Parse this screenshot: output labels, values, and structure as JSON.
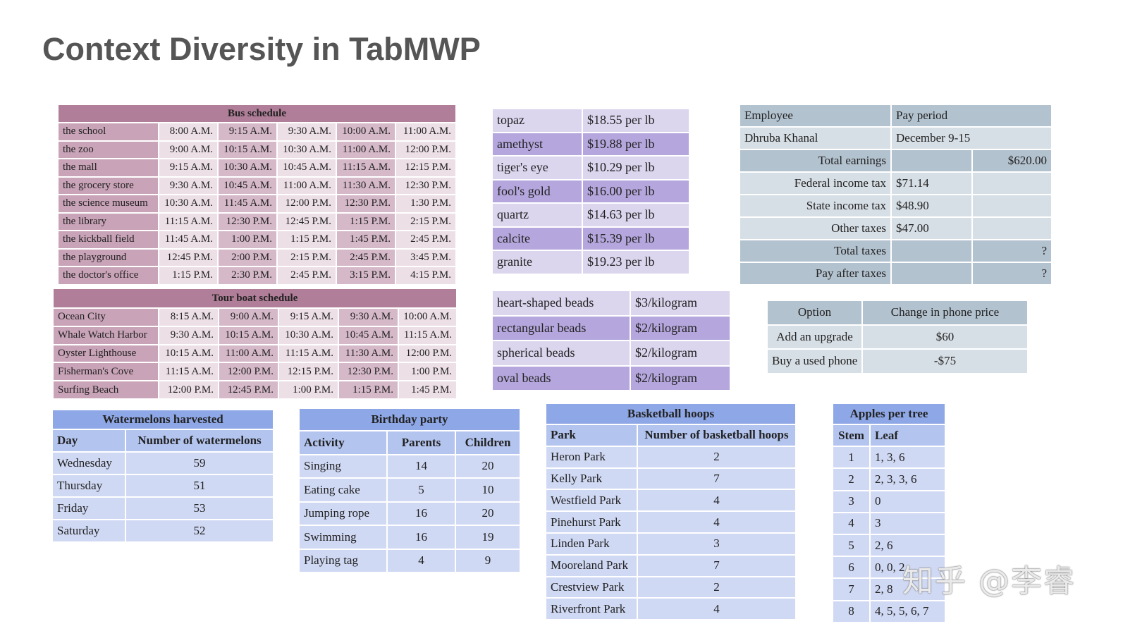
{
  "title": "Context Diversity in TabMWP",
  "watermark": "知乎 @李睿",
  "tables": {
    "bus": {
      "title": "Bus schedule",
      "rows": [
        [
          "the school",
          "8:00 A.M.",
          "9:15 A.M.",
          "9:30 A.M.",
          "10:00 A.M.",
          "11:00 A.M."
        ],
        [
          "the zoo",
          "9:00 A.M.",
          "10:15 A.M.",
          "10:30 A.M.",
          "11:00 A.M.",
          "12:00 P.M."
        ],
        [
          "the mall",
          "9:15 A.M.",
          "10:30 A.M.",
          "10:45 A.M.",
          "11:15 A.M.",
          "12:15 P.M."
        ],
        [
          "the grocery store",
          "9:30 A.M.",
          "10:45 A.M.",
          "11:00 A.M.",
          "11:30 A.M.",
          "12:30 P.M."
        ],
        [
          "the science museum",
          "10:30 A.M.",
          "11:45 A.M.",
          "12:00 P.M.",
          "12:30 P.M.",
          "1:30 P.M."
        ],
        [
          "the library",
          "11:15 A.M.",
          "12:30 P.M.",
          "12:45 P.M.",
          "1:15 P.M.",
          "2:15 P.M."
        ],
        [
          "the kickball field",
          "11:45 A.M.",
          "1:00 P.M.",
          "1:15 P.M.",
          "1:45 P.M.",
          "2:45 P.M."
        ],
        [
          "the playground",
          "12:45 P.M.",
          "2:00 P.M.",
          "2:15 P.M.",
          "2:45 P.M.",
          "3:45 P.M."
        ],
        [
          "the doctor's office",
          "1:15 P.M.",
          "2:30 P.M.",
          "2:45 P.M.",
          "3:15 P.M.",
          "4:15 P.M."
        ]
      ]
    },
    "tour": {
      "title": "Tour boat schedule",
      "rows": [
        [
          "Ocean City",
          "8:15 A.M.",
          "9:00 A.M.",
          "9:15 A.M.",
          "9:30 A.M.",
          "10:00 A.M."
        ],
        [
          "Whale Watch Harbor",
          "9:30 A.M.",
          "10:15 A.M.",
          "10:30 A.M.",
          "10:45 A.M.",
          "11:15 A.M."
        ],
        [
          "Oyster Lighthouse",
          "10:15 A.M.",
          "11:00 A.M.",
          "11:15 A.M.",
          "11:30 A.M.",
          "12:00 P.M."
        ],
        [
          "Fisherman's Cove",
          "11:15 A.M.",
          "12:00 P.M.",
          "12:15 P.M.",
          "12:30 P.M.",
          "1:00 P.M."
        ],
        [
          "Surfing Beach",
          "12:00 P.M.",
          "12:45 P.M.",
          "1:00 P.M.",
          "1:15 P.M.",
          "1:45 P.M."
        ]
      ]
    },
    "gems": {
      "rows": [
        [
          "topaz",
          "$18.55 per lb"
        ],
        [
          "amethyst",
          "$19.88 per lb"
        ],
        [
          "tiger's eye",
          "$10.29 per lb"
        ],
        [
          "fool's gold",
          "$16.00 per lb"
        ],
        [
          "quartz",
          "$14.63 per lb"
        ],
        [
          "calcite",
          "$15.39 per lb"
        ],
        [
          "granite",
          "$19.23 per lb"
        ]
      ]
    },
    "payroll": {
      "rows": [
        [
          "Employee",
          "Pay period"
        ],
        [
          "Dhruba Khanal",
          "December 9-15"
        ],
        [
          "Total earnings",
          "",
          "$620.00"
        ],
        [
          "Federal income tax",
          "$71.14",
          ""
        ],
        [
          "State income tax",
          "$48.90",
          ""
        ],
        [
          "Other taxes",
          "$47.00",
          ""
        ],
        [
          "Total taxes",
          "",
          "?"
        ],
        [
          "Pay after taxes",
          "",
          "?"
        ]
      ]
    },
    "beads": {
      "rows": [
        [
          "heart-shaped beads",
          "$3/kilogram"
        ],
        [
          "rectangular beads",
          "$2/kilogram"
        ],
        [
          "spherical beads",
          "$2/kilogram"
        ],
        [
          "oval beads",
          "$2/kilogram"
        ]
      ]
    },
    "phone": {
      "rows": [
        [
          "Option",
          "Change in phone price"
        ],
        [
          "Add an upgrade",
          "$60"
        ],
        [
          "Buy a used phone",
          "-$75"
        ]
      ]
    },
    "watermelons": {
      "title": "Watermelons harvested",
      "headers": [
        "Day",
        "Number of watermelons"
      ],
      "rows": [
        [
          "Wednesday",
          "59"
        ],
        [
          "Thursday",
          "51"
        ],
        [
          "Friday",
          "53"
        ],
        [
          "Saturday",
          "52"
        ]
      ]
    },
    "birthday": {
      "title": "Birthday party",
      "headers": [
        "Activity",
        "Parents",
        "Children"
      ],
      "rows": [
        [
          "Singing",
          "14",
          "20"
        ],
        [
          "Eating cake",
          "5",
          "10"
        ],
        [
          "Jumping rope",
          "16",
          "20"
        ],
        [
          "Swimming",
          "16",
          "19"
        ],
        [
          "Playing tag",
          "4",
          "9"
        ]
      ]
    },
    "basketball": {
      "title": "Basketball hoops",
      "headers": [
        "Park",
        "Number of basketball hoops"
      ],
      "rows": [
        [
          "Heron Park",
          "2"
        ],
        [
          "Kelly Park",
          "7"
        ],
        [
          "Westfield Park",
          "4"
        ],
        [
          "Pinehurst Park",
          "4"
        ],
        [
          "Linden Park",
          "3"
        ],
        [
          "Mooreland Park",
          "7"
        ],
        [
          "Crestview Park",
          "2"
        ],
        [
          "Riverfront Park",
          "4"
        ]
      ]
    },
    "apples": {
      "title": "Apples per tree",
      "headers": [
        "Stem",
        "Leaf"
      ],
      "rows": [
        [
          "1",
          "1, 3, 6"
        ],
        [
          "2",
          "2, 3, 3, 6"
        ],
        [
          "3",
          "0"
        ],
        [
          "4",
          "3"
        ],
        [
          "5",
          "2, 6"
        ],
        [
          "6",
          "0, 0, 2"
        ],
        [
          "7",
          "2, 8"
        ],
        [
          "8",
          "4, 5, 5, 6, 7"
        ]
      ]
    }
  }
}
